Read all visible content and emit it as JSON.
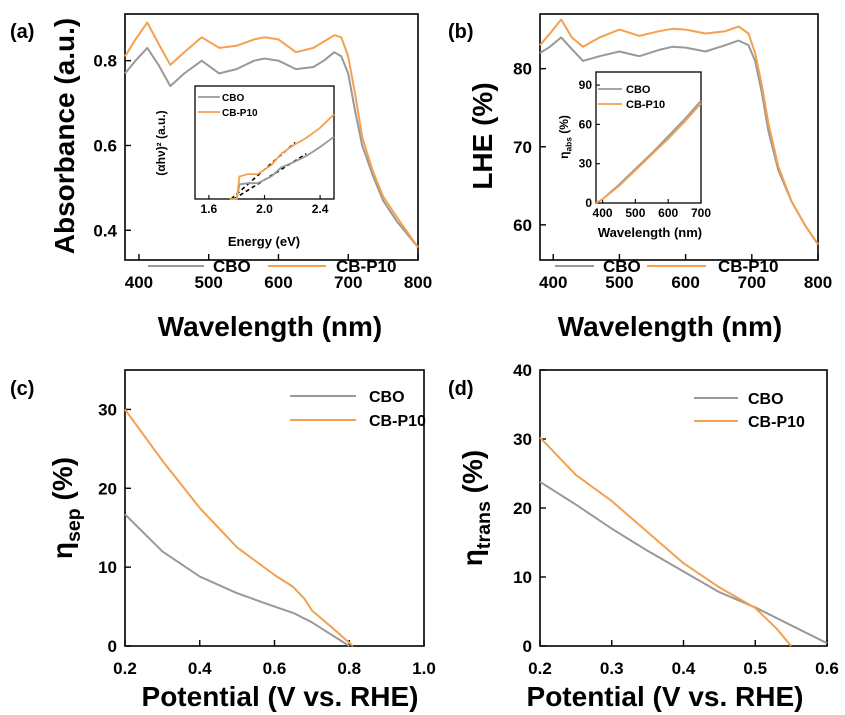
{
  "colors": {
    "cbo": "#999999",
    "cbp10": "#f5a050",
    "axis": "#000000"
  },
  "chart_data": [
    {
      "panel_label": "(a)",
      "type": "line",
      "xlabel": "Wavelength (nm)",
      "ylabel": "Absorbance (a.u.)",
      "xlim": [
        380,
        800
      ],
      "ylim": [
        0.33,
        0.91
      ],
      "xticks": [
        400,
        500,
        600,
        700,
        800
      ],
      "yticks": [
        0.4,
        0.6,
        0.8
      ],
      "ytick_labels": [
        "0.4",
        "0.6",
        "0.8"
      ],
      "legend": {
        "position": "bottom",
        "entries": [
          "CBO",
          "CB-P10"
        ]
      },
      "series": [
        {
          "name": "CBO",
          "color_key": "cbo",
          "x": [
            380,
            395,
            412,
            428,
            445,
            465,
            490,
            515,
            540,
            565,
            580,
            600,
            625,
            650,
            665,
            680,
            690,
            700,
            710,
            720,
            735,
            750,
            770,
            800
          ],
          "y": [
            0.77,
            0.8,
            0.83,
            0.79,
            0.74,
            0.77,
            0.8,
            0.77,
            0.78,
            0.8,
            0.805,
            0.8,
            0.78,
            0.785,
            0.8,
            0.82,
            0.81,
            0.77,
            0.68,
            0.6,
            0.53,
            0.47,
            0.42,
            0.36
          ]
        },
        {
          "name": "CB-P10",
          "color_key": "cbp10",
          "x": [
            380,
            395,
            412,
            428,
            445,
            465,
            490,
            515,
            540,
            565,
            580,
            600,
            625,
            650,
            665,
            680,
            690,
            700,
            710,
            720,
            735,
            750,
            770,
            800
          ],
          "y": [
            0.81,
            0.85,
            0.89,
            0.84,
            0.79,
            0.82,
            0.855,
            0.83,
            0.835,
            0.85,
            0.855,
            0.85,
            0.82,
            0.83,
            0.845,
            0.86,
            0.855,
            0.81,
            0.72,
            0.62,
            0.54,
            0.48,
            0.43,
            0.36
          ]
        }
      ],
      "inset": {
        "xlabel": "Energy (eV)",
        "ylabel": "(αhν)² (a.u.)",
        "xlim": [
          1.5,
          2.5
        ],
        "ylim": [
          0,
          1
        ],
        "xticks": [
          1.6,
          2.0,
          2.4
        ],
        "xtick_labels": [
          "1.6",
          "2.0",
          "2.4"
        ],
        "legend": {
          "position": "top-left",
          "entries": [
            "CBO",
            "CB-P10"
          ]
        },
        "series": [
          {
            "name": "CBO",
            "color_key": "cbo",
            "x": [
              1.75,
              1.8,
              1.82,
              1.88,
              1.95,
              2.05,
              2.12,
              2.2,
              2.3,
              2.4,
              2.5
            ],
            "y": [
              0.0,
              0.0,
              0.13,
              0.14,
              0.14,
              0.2,
              0.28,
              0.32,
              0.38,
              0.46,
              0.55
            ]
          },
          {
            "name": "CB-P10",
            "color_key": "cbp10",
            "x": [
              1.75,
              1.8,
              1.82,
              1.88,
              1.95,
              2.05,
              2.12,
              2.2,
              2.3,
              2.4,
              2.5
            ],
            "y": [
              0.0,
              0.0,
              0.2,
              0.22,
              0.22,
              0.3,
              0.4,
              0.47,
              0.54,
              0.63,
              0.75
            ]
          }
        ],
        "tangents": [
          {
            "x": [
              1.78,
              2.3
            ],
            "y": [
              0.0,
              0.4
            ]
          },
          {
            "x": [
              1.76,
              2.22
            ],
            "y": [
              0.0,
              0.5
            ]
          }
        ]
      }
    },
    {
      "panel_label": "(b)",
      "type": "line",
      "xlabel": "Wavelength (nm)",
      "ylabel": "LHE (%)",
      "xlim": [
        380,
        800
      ],
      "ylim": [
        55.5,
        87
      ],
      "xticks": [
        400,
        500,
        600,
        700,
        800
      ],
      "yticks": [
        60,
        70,
        80
      ],
      "ytick_labels": [
        "60",
        "70",
        "80"
      ],
      "legend": {
        "position": "bottom",
        "entries": [
          "CBO",
          "CB-P10"
        ]
      },
      "series": [
        {
          "name": "CBO",
          "color_key": "cbo",
          "x": [
            380,
            395,
            412,
            428,
            445,
            470,
            500,
            530,
            560,
            580,
            600,
            630,
            660,
            680,
            695,
            705,
            715,
            725,
            740,
            760,
            780,
            800
          ],
          "y": [
            82,
            82.8,
            84.0,
            82.5,
            81.0,
            81.6,
            82.2,
            81.6,
            82.4,
            82.8,
            82.7,
            82.2,
            83.0,
            83.6,
            83.0,
            81.0,
            77.0,
            72.0,
            67.0,
            63.0,
            60.0,
            57.5
          ]
        },
        {
          "name": "CB-P10",
          "color_key": "cbp10",
          "x": [
            380,
            395,
            412,
            428,
            445,
            470,
            500,
            530,
            560,
            580,
            600,
            630,
            660,
            680,
            695,
            705,
            715,
            725,
            740,
            760,
            780,
            800
          ],
          "y": [
            83,
            84.5,
            86.3,
            84.0,
            82.8,
            84.0,
            85.0,
            84.2,
            84.8,
            85.1,
            85.0,
            84.5,
            84.8,
            85.4,
            84.5,
            82.0,
            78.0,
            73.0,
            67.5,
            63.0,
            60.0,
            57.5
          ]
        }
      ],
      "inset": {
        "xlabel": "Wavelength (nm)",
        "ylabel": "η_abs (%)",
        "ylabel_main": "η",
        "ylabel_sub": "abs",
        "ylabel_unit": " (%)",
        "xlim": [
          380,
          700
        ],
        "ylim": [
          0,
          100
        ],
        "xticks": [
          400,
          500,
          600,
          700
        ],
        "xtick_labels": [
          "400",
          "500",
          "600",
          "700"
        ],
        "yticks": [
          0,
          30,
          60,
          90
        ],
        "ytick_labels": [
          "0",
          "30",
          "60",
          "90"
        ],
        "legend": {
          "position": "top-left",
          "entries": [
            "CBO",
            "CB-P10"
          ]
        },
        "series": [
          {
            "name": "CBO",
            "color_key": "cbo",
            "x": [
              380,
              400,
              450,
              500,
              550,
              600,
              650,
              700
            ],
            "y": [
              0,
              3,
              14,
              26,
              38,
              51,
              64,
              78
            ]
          },
          {
            "name": "CB-P10",
            "color_key": "cbp10",
            "x": [
              380,
              400,
              450,
              500,
              550,
              600,
              650,
              700
            ],
            "y": [
              0,
              3,
              13,
              25,
              37,
              49,
              62,
              76
            ]
          }
        ]
      }
    },
    {
      "panel_label": "(c)",
      "type": "line",
      "xlabel": "Potential (V vs. RHE)",
      "ylabel": "η_sep (%)",
      "ylabel_main": "η",
      "ylabel_sub": "sep",
      "ylabel_unit": " (%)",
      "xlim": [
        0.2,
        1.0
      ],
      "ylim": [
        0,
        35
      ],
      "xticks": [
        0.2,
        0.4,
        0.6,
        0.8,
        1.0
      ],
      "xtick_labels": [
        "0.2",
        "0.4",
        "0.6",
        "0.8",
        "1.0"
      ],
      "yticks": [
        0,
        10,
        20,
        30
      ],
      "ytick_labels": [
        "0",
        "10",
        "20",
        "30"
      ],
      "legend": {
        "position": "top-right",
        "entries": [
          "CBO",
          "CB-P10"
        ]
      },
      "series": [
        {
          "name": "CBO",
          "color_key": "cbo",
          "x": [
            0.2,
            0.3,
            0.4,
            0.5,
            0.6,
            0.65,
            0.7,
            0.75,
            0.8
          ],
          "y": [
            16.7,
            12.0,
            8.8,
            6.7,
            5.0,
            4.2,
            3.0,
            1.5,
            0
          ]
        },
        {
          "name": "CB-P10",
          "color_key": "cbp10",
          "x": [
            0.2,
            0.3,
            0.4,
            0.5,
            0.6,
            0.65,
            0.68,
            0.7,
            0.75,
            0.81
          ],
          "y": [
            30.0,
            23.5,
            17.5,
            12.5,
            9.0,
            7.5,
            6.0,
            4.5,
            2.5,
            0
          ]
        }
      ]
    },
    {
      "panel_label": "(d)",
      "type": "line",
      "xlabel": "Potential (V vs. RHE)",
      "ylabel": "η_trans (%)",
      "ylabel_main": "η",
      "ylabel_sub": "trans",
      "ylabel_unit": " (%)",
      "xlim": [
        0.2,
        0.6
      ],
      "ylim": [
        0,
        40
      ],
      "xticks": [
        0.2,
        0.3,
        0.4,
        0.5,
        0.6
      ],
      "xtick_labels": [
        "0.2",
        "0.3",
        "0.4",
        "0.5",
        "0.6"
      ],
      "yticks": [
        0,
        10,
        20,
        30,
        40
      ],
      "ytick_labels": [
        "0",
        "10",
        "20",
        "30",
        "40"
      ],
      "legend": {
        "position": "top-right",
        "entries": [
          "CBO",
          "CB-P10"
        ]
      },
      "series": [
        {
          "name": "CBO",
          "color_key": "cbo",
          "x": [
            0.2,
            0.25,
            0.3,
            0.35,
            0.4,
            0.45,
            0.5,
            0.55,
            0.6
          ],
          "y": [
            23.8,
            20.5,
            17.0,
            13.8,
            10.8,
            7.8,
            5.6,
            3.0,
            0.4
          ]
        },
        {
          "name": "CB-P10",
          "color_key": "cbp10",
          "x": [
            0.2,
            0.25,
            0.3,
            0.35,
            0.4,
            0.45,
            0.5,
            0.53,
            0.55
          ],
          "y": [
            30.2,
            24.8,
            21.0,
            16.5,
            12.0,
            8.5,
            5.5,
            2.5,
            0
          ]
        }
      ]
    }
  ]
}
